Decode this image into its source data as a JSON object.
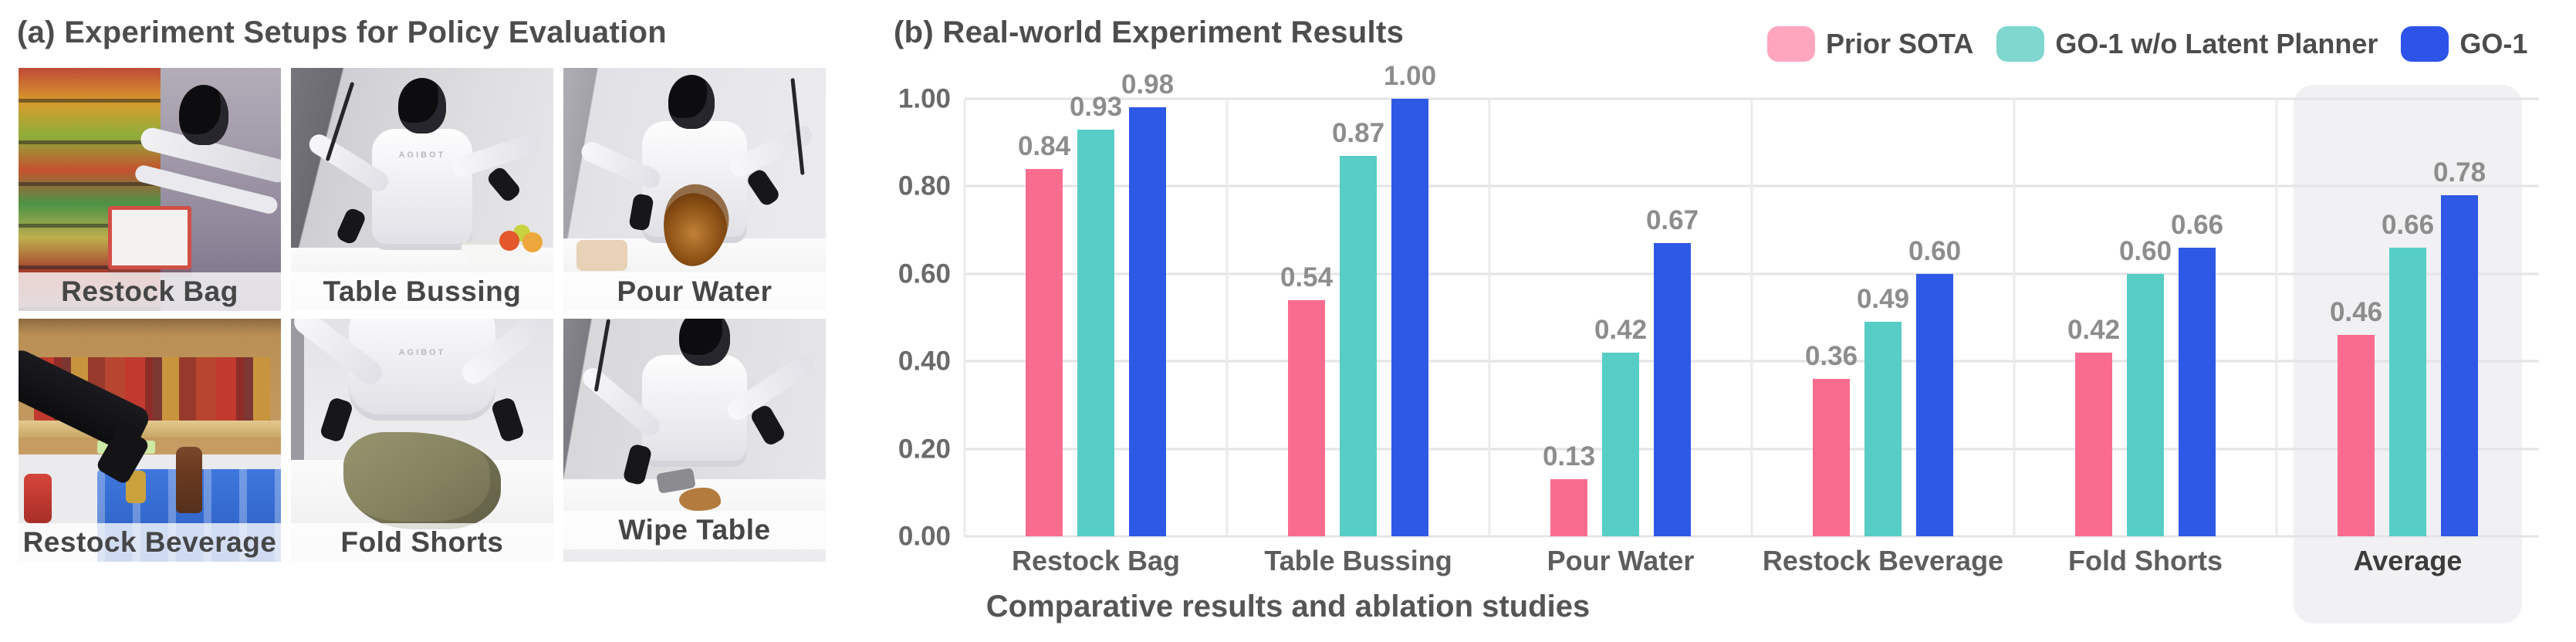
{
  "figure": {
    "panel_a": {
      "title": "(a) Experiment Setups for Policy Evaluation",
      "setups": [
        "Restock Bag",
        "Table Bussing",
        "Pour Water",
        "Restock Beverage",
        "Fold Shorts",
        "Wipe Table"
      ],
      "robot_brand": "AGIBOT"
    },
    "panel_b": {
      "title": "(b) Real-world Experiment Results",
      "caption": "Comparative results and ablation studies"
    }
  },
  "legend": [
    {
      "label": "Prior SOTA",
      "color": "#FFA6BE"
    },
    {
      "label": "GO-1 w/o Latent Planner",
      "color": "#7FD7CF"
    },
    {
      "label": "GO-1",
      "color": "#2D53E8"
    }
  ],
  "chart_data": {
    "type": "bar",
    "title": "(b) Real-world Experiment Results",
    "categories": [
      "Restock Bag",
      "Table Bussing",
      "Pour Water",
      "Restock Beverage",
      "Fold Shorts",
      "Average"
    ],
    "series": [
      {
        "name": "Prior SOTA",
        "color": "#FA6C8F",
        "values": [
          0.84,
          0.54,
          0.13,
          0.36,
          0.42,
          0.46
        ]
      },
      {
        "name": "GO-1 w/o Latent Planner",
        "color": "#56CEC5",
        "values": [
          0.93,
          0.87,
          0.42,
          0.49,
          0.6,
          0.66
        ]
      },
      {
        "name": "GO-1",
        "color": "#2E59E6",
        "values": [
          0.98,
          1.0,
          0.67,
          0.6,
          0.66,
          0.78
        ]
      }
    ],
    "xlabel": "",
    "ylabel": "",
    "ylim": [
      0,
      1.0
    ],
    "yticks": [
      0,
      0.2,
      0.4,
      0.6,
      0.8,
      1.0
    ],
    "grid": true,
    "legend_position": "top-right",
    "highlight_category": "Average",
    "value_labels": true,
    "caption": "Comparative results and ablation studies"
  }
}
